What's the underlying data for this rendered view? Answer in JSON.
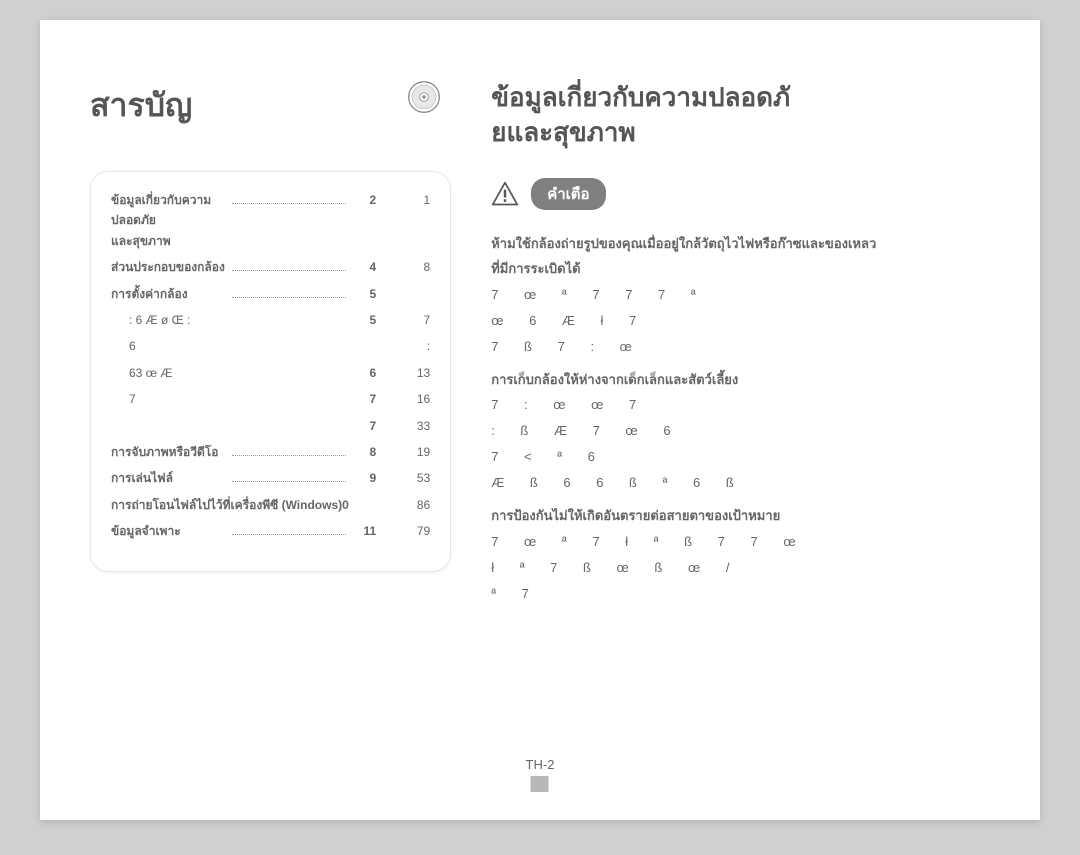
{
  "page": {
    "number_label": "TH-2",
    "background": "#d0d0d0",
    "paper": "#ffffff"
  },
  "toc": {
    "title": "สารบัญ",
    "rows": [
      {
        "label_a": "ข้อมูลเกี่ยวกับความปลอดภัย",
        "label_b": "และสุขภาพ",
        "left": "2",
        "right": "1",
        "bold": true
      },
      {
        "label_a": "ส่วนประกอบของกล้อง",
        "left": "4",
        "right": "8",
        "bold": true
      },
      {
        "label_a": "การตั้งค่ากล้อง",
        "left": "5",
        "right": "",
        "bold": true
      },
      {
        "label_a": ": 6    Æ  ø   Œ  :",
        "left": "5",
        "right": "7",
        "sub": true
      },
      {
        "label_a": "6",
        "left": "",
        "right": ":",
        "sub": true
      },
      {
        "label_a": "63      œ Æ",
        "left": "6",
        "right": "13",
        "sub": true
      },
      {
        "label_a": "7",
        "left": "7",
        "right": "16",
        "sub": true
      },
      {
        "label_a": "",
        "left": "7",
        "right": "33",
        "sub": true
      },
      {
        "label_a": "การจับภาพหรือวีดีโอ",
        "left": "8",
        "right": "19",
        "bold": true
      },
      {
        "label_a": "การเล่นไฟล์",
        "left": "9",
        "right": "53",
        "bold": true
      },
      {
        "label_a": "การถ่ายโอนไฟล์ไปไว้ที่เครื่องพีซี (Windows)0",
        "left": "",
        "right": "86",
        "bold": true
      },
      {
        "label_a": "ข้อมูลจำเพาะ",
        "left": "11",
        "right": "79",
        "bold": true
      }
    ]
  },
  "safety": {
    "title": "ข้อมูลเกี่ยวกับความปลอดภั\nยและสุขภาพ",
    "warning_label": "คำเตือ",
    "blocks": [
      {
        "head": "ห้ามใช้กล้องถ่ายรูปของคุณเมื่ออยู่ใกล้วัตถุไวไฟหรือก๊าซและของเหลว\nที่มีการระเบิดได้",
        "body": "7  œ  ª 7    7                         7  ª\nœ 6    Æ                               ł  7\n7           ß        7          :       œ"
      },
      {
        "head": "การเก็บกล้องให้ห่างจากเด็กเล็กและสัตว์เลี้ยง",
        "body": "     7                :     œ      œ      7\n  :      ß         Æ     7  œ   6\n                   7         <      ª     6\nÆ           ß  6 6     ß  ª 6    ß"
      },
      {
        "head": "การป้องกันไม่ให้เกิดอันตรายต่อสายตาของเป้าหมาย",
        "body": "7  œ  ª 7  ł  ª     ß     7     7        œ\nł ª   7     ß          œ  ß œ            /\n   ª                   7"
      }
    ]
  },
  "colors": {
    "text": "#656565",
    "heading": "#555555",
    "pill_bg": "#808080",
    "pill_fg": "#ffffff",
    "panel_border": "#e8e8e8",
    "page_bar": "#b8b8b8"
  }
}
